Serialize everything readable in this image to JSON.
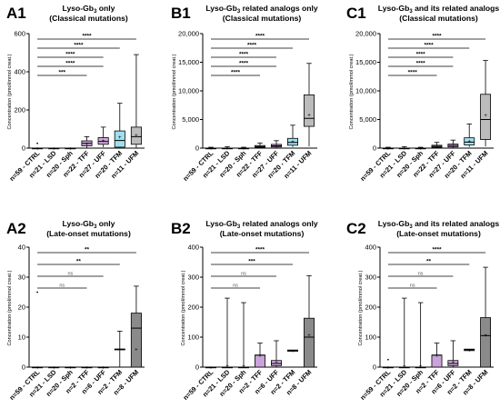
{
  "chart_data": [
    {
      "id": "A1",
      "type": "box",
      "title": "Lyso-Gb3 only",
      "subtitle": "(Classical mutations)",
      "ylabel": "Concentration (pmol/mmol creat.)",
      "ylim": [
        0,
        600
      ],
      "yticks": [
        0,
        200,
        400,
        600
      ],
      "ytick_labels": [
        "0",
        "200",
        "400",
        "600"
      ],
      "categories": [
        "n=59 - CTRL",
        "n=21 - LSD",
        "n=20 - Sph",
        "n=22 - TFF",
        "n=27 - UFF",
        "n=20 - TFM",
        "n=11 - UFM"
      ],
      "box_colors": [
        "#ffffff",
        "#ffffff",
        "#ffffff",
        "#c9a3d9",
        "#d3a8e0",
        "#9ee0ee",
        "#bcbcbc"
      ],
      "boxes": [
        {
          "min": 0,
          "q1": 0,
          "median": 0,
          "q3": 0,
          "max": 0,
          "mean": 0,
          "outliers": [
            25
          ]
        },
        {
          "min": 0,
          "q1": 0,
          "median": 0,
          "q3": 0,
          "max": 0,
          "mean": 0,
          "outliers": []
        },
        {
          "min": 0,
          "q1": 0,
          "median": 0,
          "q3": 0,
          "max": 0,
          "mean": 0,
          "outliers": []
        },
        {
          "min": 0,
          "q1": 12,
          "median": 25,
          "q3": 38,
          "max": 60,
          "mean": 24,
          "outliers": []
        },
        {
          "min": 5,
          "q1": 20,
          "median": 35,
          "q3": 55,
          "max": 110,
          "mean": 40,
          "outliers": []
        },
        {
          "min": 0,
          "q1": 5,
          "median": 40,
          "q3": 90,
          "max": 235,
          "mean": 60,
          "outliers": []
        },
        {
          "min": 0,
          "q1": 20,
          "median": 60,
          "q3": 110,
          "max": 490,
          "mean": 70,
          "outliers": []
        }
      ],
      "significance": [
        {
          "label": "****",
          "from": 0,
          "to": 6
        },
        {
          "label": "****",
          "from": 0,
          "to": 5
        },
        {
          "label": "****",
          "from": 0,
          "to": 4
        },
        {
          "label": "****",
          "from": 0,
          "to": 4
        },
        {
          "label": "***",
          "from": 0,
          "to": 3
        }
      ]
    },
    {
      "id": "B1",
      "type": "box",
      "title": "Lyso-Gb3 related analogs only",
      "subtitle": "(Classical mutations)",
      "ylabel": "Concentration (pmol/mmol creat.)",
      "ylim": [
        0,
        20000
      ],
      "yticks": [
        0,
        5000,
        10000,
        15000,
        20000
      ],
      "ytick_labels": [
        "0",
        "5,000",
        "10,000",
        "15,000",
        "20,000"
      ],
      "categories": [
        "n=59 - CTRL",
        "n=21 - LSD",
        "n=20 - Sph",
        "n=22 - TFF",
        "n=27 - UFF",
        "n=20 - TFM",
        "n=11 - UFM"
      ],
      "box_colors": [
        "#ffffff",
        "#ffffff",
        "#ffffff",
        "#c9a3d9",
        "#d3a8e0",
        "#9ee0ee",
        "#bcbcbc"
      ],
      "boxes": [
        {
          "min": 0,
          "q1": 0,
          "median": 0,
          "q3": 0,
          "max": 150,
          "mean": 30,
          "outliers": []
        },
        {
          "min": 0,
          "q1": 0,
          "median": 0,
          "q3": 0,
          "max": 250,
          "mean": 40,
          "outliers": []
        },
        {
          "min": 0,
          "q1": 0,
          "median": 0,
          "q3": 0,
          "max": 150,
          "mean": 30,
          "outliers": []
        },
        {
          "min": 50,
          "q1": 150,
          "median": 250,
          "q3": 450,
          "max": 900,
          "mean": 300,
          "outliers": []
        },
        {
          "min": 50,
          "q1": 200,
          "median": 400,
          "q3": 650,
          "max": 1300,
          "mean": 450,
          "outliers": []
        },
        {
          "min": 200,
          "q1": 500,
          "median": 1000,
          "q3": 1700,
          "max": 4000,
          "mean": 1200,
          "outliers": []
        },
        {
          "min": 300,
          "q1": 3800,
          "median": 5200,
          "q3": 9300,
          "max": 14800,
          "mean": 5900,
          "outliers": []
        }
      ],
      "significance": [
        {
          "label": "****",
          "from": 0,
          "to": 6
        },
        {
          "label": "****",
          "from": 0,
          "to": 5
        },
        {
          "label": "****",
          "from": 0,
          "to": 4
        },
        {
          "label": "****",
          "from": 0,
          "to": 4
        },
        {
          "label": "****",
          "from": 0,
          "to": 3
        }
      ]
    },
    {
      "id": "C1",
      "type": "box",
      "title": "Lyso-Gb3 and its related analogs",
      "subtitle": "(Classical mutations)",
      "ylabel": "Concentration (pmol/mmol creat.)",
      "ylim": [
        0,
        20000
      ],
      "yticks": [
        0,
        5000,
        10000,
        15000,
        20000
      ],
      "ytick_labels": [
        "0",
        "5,000",
        "10,000",
        "15,000",
        "20,000"
      ],
      "categories": [
        "n=59 - CTRL",
        "n=21 - LSD",
        "n=20 - Sph",
        "n=22 - TFF",
        "n=27 - UFF",
        "n=20 - TFM",
        "n=11 - UFM"
      ],
      "box_colors": [
        "#ffffff",
        "#ffffff",
        "#ffffff",
        "#c9a3d9",
        "#d3a8e0",
        "#9ee0ee",
        "#bcbcbc"
      ],
      "boxes": [
        {
          "min": 0,
          "q1": 0,
          "median": 0,
          "q3": 0,
          "max": 150,
          "mean": 30,
          "outliers": []
        },
        {
          "min": 0,
          "q1": 0,
          "median": 0,
          "q3": 0,
          "max": 250,
          "mean": 40,
          "outliers": []
        },
        {
          "min": 0,
          "q1": 0,
          "median": 0,
          "q3": 0,
          "max": 150,
          "mean": 30,
          "outliers": []
        },
        {
          "min": 50,
          "q1": 150,
          "median": 300,
          "q3": 500,
          "max": 1000,
          "mean": 330,
          "outliers": []
        },
        {
          "min": 50,
          "q1": 200,
          "median": 450,
          "q3": 700,
          "max": 1400,
          "mean": 480,
          "outliers": []
        },
        {
          "min": 200,
          "q1": 550,
          "median": 1050,
          "q3": 1800,
          "max": 4200,
          "mean": 1250,
          "outliers": []
        },
        {
          "min": 300,
          "q1": 1500,
          "median": 5000,
          "q3": 9400,
          "max": 15300,
          "mean": 5800,
          "outliers": []
        }
      ],
      "significance": [
        {
          "label": "****",
          "from": 0,
          "to": 6
        },
        {
          "label": "****",
          "from": 0,
          "to": 5
        },
        {
          "label": "****",
          "from": 0,
          "to": 4
        },
        {
          "label": "****",
          "from": 0,
          "to": 4
        },
        {
          "label": "****",
          "from": 0,
          "to": 3
        }
      ]
    },
    {
      "id": "A2",
      "type": "box",
      "title": "Lyso-Gb3 only",
      "subtitle": "(Late-onset mutations)",
      "ylabel": "Concentration (pmol/mmol creat.)",
      "ylim": [
        0,
        40
      ],
      "yticks": [
        0,
        10,
        20,
        30,
        40
      ],
      "ytick_labels": [
        "0",
        "10",
        "20",
        "30",
        "40"
      ],
      "categories": [
        "n=59 - CTRL",
        "n=21 - LSD",
        "n=20 - Sph",
        "n=2 - TFF",
        "n=6 - UFF",
        "n=2 - TFM",
        "n=8 - UFM"
      ],
      "box_colors": [
        "#ffffff",
        "#ffffff",
        "#ffffff",
        "#c9a3d9",
        "#d3a8e0",
        "#9ee0ee",
        "#8a8a8a"
      ],
      "boxes": [
        {
          "min": 0,
          "q1": 0,
          "median": 0,
          "q3": 0,
          "max": 0,
          "mean": 0,
          "outliers": [
            25
          ]
        },
        {
          "min": 0,
          "q1": 0,
          "median": 0,
          "q3": 0,
          "max": 0,
          "mean": 0,
          "outliers": []
        },
        {
          "min": 0,
          "q1": 0,
          "median": 0,
          "q3": 0,
          "max": 0,
          "mean": 0,
          "outliers": []
        },
        {
          "min": 0,
          "q1": 0,
          "median": 0,
          "q3": 0,
          "max": 0,
          "mean": 0,
          "outliers": []
        },
        {
          "min": 0,
          "q1": 0,
          "median": 0,
          "q3": 0,
          "max": 0,
          "mean": 0,
          "outliers": []
        },
        {
          "min": 0,
          "q1": 6,
          "median": 6,
          "q3": 6,
          "max": 12,
          "mean": 6,
          "outliers": []
        },
        {
          "min": 0,
          "q1": 0,
          "median": 13,
          "q3": 18,
          "max": 27,
          "mean": 6,
          "outliers": []
        }
      ],
      "significance": [
        {
          "label": "**",
          "from": 0,
          "to": 6
        },
        {
          "label": "**",
          "from": 0,
          "to": 5
        },
        {
          "label": "ns",
          "from": 0,
          "to": 4
        },
        {
          "label": "ns",
          "from": 0,
          "to": 3
        }
      ]
    },
    {
      "id": "B2",
      "type": "box",
      "title": "Lyso-Gb3 related analogs only",
      "subtitle": "(Late-onset mutations)",
      "ylabel": "Concentration (pmol/mmol creat.)",
      "ylim": [
        0,
        400
      ],
      "yticks": [
        0,
        100,
        200,
        300,
        400
      ],
      "ytick_labels": [
        "0",
        "100",
        "200",
        "300",
        "400"
      ],
      "categories": [
        "n=59 - CTRL",
        "n=21 - LSD",
        "n=20 - Sph",
        "n=2 - TFF",
        "n=6 - UFF",
        "n=2 - TFM",
        "n=8 - UFM"
      ],
      "box_colors": [
        "#ffffff",
        "#ffffff",
        "#ffffff",
        "#c9a3d9",
        "#d3a8e0",
        "#9ee0ee",
        "#8a8a8a"
      ],
      "boxes": [
        {
          "min": 0,
          "q1": 0,
          "median": 0,
          "q3": 0,
          "max": 0,
          "mean": 0,
          "outliers": []
        },
        {
          "min": 0,
          "q1": 0,
          "median": 0,
          "q3": 0,
          "max": 230,
          "mean": 5,
          "outliers": []
        },
        {
          "min": 0,
          "q1": 0,
          "median": 0,
          "q3": 0,
          "max": 215,
          "mean": 5,
          "outliers": []
        },
        {
          "min": 0,
          "q1": 0,
          "median": 40,
          "q3": 40,
          "max": 80,
          "mean": 40,
          "outliers": []
        },
        {
          "min": 0,
          "q1": 5,
          "median": 12,
          "q3": 22,
          "max": 88,
          "mean": 18,
          "outliers": []
        },
        {
          "min": 53,
          "q1": 53,
          "median": 55,
          "q3": 57,
          "max": 57,
          "mean": 55,
          "outliers": []
        },
        {
          "min": 0,
          "q1": 0,
          "median": 100,
          "q3": 163,
          "max": 305,
          "mean": 108,
          "outliers": []
        }
      ],
      "significance": [
        {
          "label": "****",
          "from": 0,
          "to": 6
        },
        {
          "label": "***",
          "from": 0,
          "to": 5
        },
        {
          "label": "ns",
          "from": 0,
          "to": 4
        },
        {
          "label": "ns",
          "from": 0,
          "to": 3
        }
      ]
    },
    {
      "id": "C2",
      "type": "box",
      "title": "Lyso-Gb3 and its related analogs",
      "subtitle": "(Late-onset mutations)",
      "ylabel": "Concentration (pmol/mmol creat.)",
      "ylim": [
        0,
        400
      ],
      "yticks": [
        0,
        100,
        200,
        300,
        400
      ],
      "ytick_labels": [
        "0",
        "100",
        "200",
        "300",
        "400"
      ],
      "categories": [
        "n=59 - CTRL",
        "n=21 - LSD",
        "n=20 - Sph",
        "n=2 - TFF",
        "n=6 - UFF",
        "n=2 - TFM",
        "n=8 - UFM"
      ],
      "box_colors": [
        "#ffffff",
        "#ffffff",
        "#ffffff",
        "#c9a3d9",
        "#d3a8e0",
        "#9ee0ee",
        "#8a8a8a"
      ],
      "boxes": [
        {
          "min": 0,
          "q1": 0,
          "median": 0,
          "q3": 0,
          "max": 0,
          "mean": 0,
          "outliers": [
            25
          ]
        },
        {
          "min": 0,
          "q1": 0,
          "median": 0,
          "q3": 0,
          "max": 230,
          "mean": 5,
          "outliers": []
        },
        {
          "min": 0,
          "q1": 0,
          "median": 0,
          "q3": 0,
          "max": 215,
          "mean": 5,
          "outliers": []
        },
        {
          "min": 0,
          "q1": 0,
          "median": 40,
          "q3": 40,
          "max": 80,
          "mean": 40,
          "outliers": []
        },
        {
          "min": 0,
          "q1": 5,
          "median": 12,
          "q3": 22,
          "max": 88,
          "mean": 18,
          "outliers": []
        },
        {
          "min": 55,
          "q1": 55,
          "median": 58,
          "q3": 60,
          "max": 60,
          "mean": 58,
          "outliers": []
        },
        {
          "min": 0,
          "q1": 0,
          "median": 105,
          "q3": 165,
          "max": 333,
          "mean": 108,
          "outliers": []
        }
      ],
      "significance": [
        {
          "label": "****",
          "from": 0,
          "to": 6
        },
        {
          "label": "**",
          "from": 0,
          "to": 5
        },
        {
          "label": "ns",
          "from": 0,
          "to": 4
        },
        {
          "label": "ns",
          "from": 0,
          "to": 3
        }
      ]
    }
  ]
}
